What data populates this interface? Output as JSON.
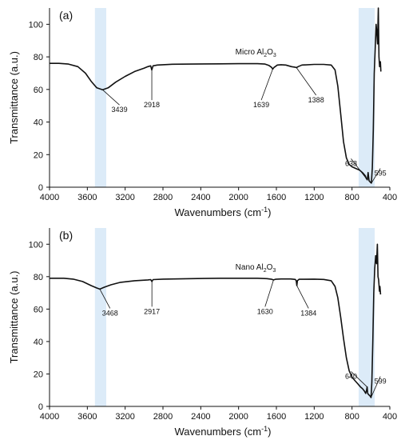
{
  "chart_data": [
    {
      "type": "line",
      "panel_label": "(a)",
      "sample_label": "Micro Al",
      "sample_sub1": "2",
      "sample_mid": "O",
      "sample_sub2": "3",
      "xlabel": "Wavenumbers (cm",
      "xlabel_sup": "-1",
      "xlabel_end": ")",
      "ylabel": "Transmittance (a.u.)",
      "xlim": [
        4000,
        400
      ],
      "ylim": [
        0,
        110
      ],
      "x_ticks": [
        "4000",
        "3600",
        "3200",
        "2800",
        "2400",
        "2000",
        "1600",
        "1200",
        "800",
        "400"
      ],
      "y_ticks": [
        "0",
        "20",
        "40",
        "60",
        "80",
        "100"
      ],
      "highlight_bands": [
        [
          3520,
          3400
        ],
        [
          730,
          560
        ]
      ],
      "highlight_color": "#dcebf8",
      "line_color": "#111111",
      "series": [
        {
          "points": [
            [
              4000,
              76
            ],
            [
              3900,
              76
            ],
            [
              3800,
              75.6
            ],
            [
              3700,
              74
            ],
            [
              3620,
              70
            ],
            [
              3560,
              65
            ],
            [
              3500,
              61
            ],
            [
              3439,
              59.8
            ],
            [
              3380,
              61
            ],
            [
              3300,
              64.5
            ],
            [
              3200,
              68
            ],
            [
              3100,
              71
            ],
            [
              3000,
              73
            ],
            [
              2960,
              74
            ],
            [
              2930,
              74.5
            ],
            [
              2918,
              72
            ],
            [
              2905,
              74.5
            ],
            [
              2860,
              75
            ],
            [
              2800,
              75.2
            ],
            [
              2700,
              75.5
            ],
            [
              2500,
              75.6
            ],
            [
              2200,
              75.7
            ],
            [
              2000,
              75.8
            ],
            [
              1800,
              75.8
            ],
            [
              1720,
              75.6
            ],
            [
              1680,
              74.8
            ],
            [
              1650,
              73.5
            ],
            [
              1639,
              72.5
            ],
            [
              1625,
              73.5
            ],
            [
              1590,
              75
            ],
            [
              1550,
              75.2
            ],
            [
              1500,
              75
            ],
            [
              1440,
              74
            ],
            [
              1400,
              73.6
            ],
            [
              1388,
              73.4
            ],
            [
              1370,
              74
            ],
            [
              1330,
              75
            ],
            [
              1200,
              75.4
            ],
            [
              1100,
              75.4
            ],
            [
              1020,
              75
            ],
            [
              980,
              72
            ],
            [
              950,
              62
            ],
            [
              920,
              45
            ],
            [
              890,
              28
            ],
            [
              860,
              18
            ],
            [
              830,
              14
            ],
            [
              800,
              12.5
            ],
            [
              760,
              11.5
            ],
            [
              720,
              10.5
            ],
            [
              690,
              9
            ],
            [
              660,
              7
            ],
            [
              650,
              5.5
            ],
            [
              638,
              4.5
            ],
            [
              630,
              9
            ],
            [
              620,
              4
            ],
            [
              605,
              3
            ],
            [
              595,
              2.5
            ],
            [
              585,
              12
            ],
            [
              575,
              35
            ],
            [
              565,
              70
            ],
            [
              555,
              85
            ],
            [
              545,
              100
            ],
            [
              538,
              95
            ],
            [
              530,
              88
            ],
            [
              522,
              110
            ],
            [
              515,
              80
            ],
            [
              508,
              74
            ],
            [
              500,
              77
            ],
            [
              495,
              71
            ]
          ]
        }
      ],
      "annotations": [
        {
          "text": "3439",
          "at": [
            3439,
            59.8
          ],
          "label_at": [
            3260,
            49
          ]
        },
        {
          "text": "2918",
          "at": [
            2918,
            72
          ],
          "label_at": [
            2918,
            52
          ]
        },
        {
          "text": "1639",
          "at": [
            1639,
            72.5
          ],
          "label_at": [
            1760,
            52
          ]
        },
        {
          "text": "1388",
          "at": [
            1388,
            73.4
          ],
          "label_at": [
            1180,
            55
          ]
        },
        {
          "text": "638",
          "at": [
            638,
            4.5
          ],
          "label_at": [
            810,
            16
          ]
        },
        {
          "text": "595",
          "at": [
            595,
            2.5
          ],
          "label_at": [
            500,
            10
          ]
        }
      ]
    },
    {
      "type": "line",
      "panel_label": "(b)",
      "sample_label": "Nano Al",
      "sample_sub1": "2",
      "sample_mid": "O",
      "sample_sub2": "3",
      "xlabel": "Wavenumbers (cm",
      "xlabel_sup": "-1",
      "xlabel_end": ")",
      "ylabel": "Transmittance (a.u.)",
      "xlim": [
        4000,
        400
      ],
      "ylim": [
        0,
        110
      ],
      "x_ticks": [
        "4000",
        "3600",
        "3200",
        "2800",
        "2400",
        "2000",
        "1600",
        "1200",
        "800",
        "400"
      ],
      "y_ticks": [
        "0",
        "20",
        "40",
        "60",
        "80",
        "100"
      ],
      "highlight_bands": [
        [
          3520,
          3400
        ],
        [
          730,
          560
        ]
      ],
      "highlight_color": "#dcebf8",
      "line_color": "#111111",
      "series": [
        {
          "points": [
            [
              4000,
              79
            ],
            [
              3850,
              79
            ],
            [
              3750,
              78.5
            ],
            [
              3650,
              77
            ],
            [
              3560,
              74.5
            ],
            [
              3500,
              73
            ],
            [
              3468,
              72.3
            ],
            [
              3420,
              73.5
            ],
            [
              3350,
              75
            ],
            [
              3250,
              76.5
            ],
            [
              3100,
              77.5
            ],
            [
              2960,
              78
            ],
            [
              2930,
              78.2
            ],
            [
              2917,
              77
            ],
            [
              2905,
              78.2
            ],
            [
              2800,
              78.5
            ],
            [
              2500,
              78.8
            ],
            [
              2200,
              79
            ],
            [
              2000,
              79
            ],
            [
              1800,
              79
            ],
            [
              1700,
              78.8
            ],
            [
              1650,
              78.4
            ],
            [
              1630,
              78
            ],
            [
              1610,
              78.4
            ],
            [
              1550,
              78.6
            ],
            [
              1450,
              78.6
            ],
            [
              1400,
              78.3
            ],
            [
              1390,
              77.5
            ],
            [
              1384,
              74.5
            ],
            [
              1378,
              77.5
            ],
            [
              1360,
              78.4
            ],
            [
              1200,
              78.5
            ],
            [
              1100,
              78.3
            ],
            [
              1020,
              77.5
            ],
            [
              980,
              74
            ],
            [
              950,
              67
            ],
            [
              920,
              55
            ],
            [
              890,
              42
            ],
            [
              860,
              30
            ],
            [
              830,
              22
            ],
            [
              800,
              18
            ],
            [
              770,
              16
            ],
            [
              740,
              14
            ],
            [
              710,
              12
            ],
            [
              690,
              11
            ],
            [
              670,
              9.5
            ],
            [
              655,
              8
            ],
            [
              646,
              10
            ],
            [
              640,
              12
            ],
            [
              634,
              8
            ],
            [
              620,
              7
            ],
            [
              610,
              6.5
            ],
            [
              599,
              5.5
            ],
            [
              590,
              15
            ],
            [
              580,
              40
            ],
            [
              570,
              70
            ],
            [
              560,
              85
            ],
            [
              550,
              93
            ],
            [
              540,
              88
            ],
            [
              532,
              100
            ],
            [
              525,
              80
            ],
            [
              518,
              78
            ],
            [
              510,
              71
            ],
            [
              505,
              74
            ],
            [
              498,
              69
            ]
          ]
        }
      ],
      "annotations": [
        {
          "text": "3468",
          "at": [
            3468,
            72.3
          ],
          "label_at": [
            3360,
            59
          ]
        },
        {
          "text": "2917",
          "at": [
            2917,
            77
          ],
          "label_at": [
            2917,
            60
          ]
        },
        {
          "text": "1630",
          "at": [
            1630,
            78
          ],
          "label_at": [
            1720,
            60
          ]
        },
        {
          "text": "1384",
          "at": [
            1384,
            74.5
          ],
          "label_at": [
            1260,
            59
          ]
        },
        {
          "text": "640",
          "at": [
            640,
            12
          ],
          "label_at": [
            810,
            20
          ]
        },
        {
          "text": "599",
          "at": [
            599,
            5.5
          ],
          "label_at": [
            500,
            17
          ]
        }
      ]
    }
  ]
}
